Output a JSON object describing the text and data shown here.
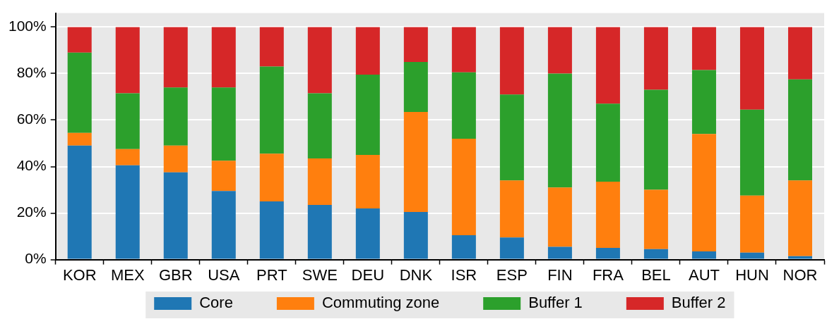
{
  "chart_data": {
    "type": "bar",
    "stacked": true,
    "categories": [
      "KOR",
      "MEX",
      "GBR",
      "USA",
      "PRT",
      "SWE",
      "DEU",
      "DNK",
      "ISR",
      "ESP",
      "FIN",
      "FRA",
      "BEL",
      "AUT",
      "HUN",
      "NOR"
    ],
    "series": [
      {
        "name": "Core",
        "color": "#1f77b4",
        "values": [
          49,
          40.5,
          37.5,
          29.5,
          25,
          23.5,
          22,
          20.5,
          10.5,
          9.5,
          5.5,
          5,
          4.5,
          3.5,
          3,
          1.5
        ]
      },
      {
        "name": "Commuting zone",
        "color": "#ff7f0e",
        "values": [
          5.5,
          7,
          11.5,
          13,
          20.5,
          20,
          23,
          43,
          41.5,
          24.5,
          25.5,
          28.5,
          25.5,
          50.5,
          24.5,
          32.5
        ]
      },
      {
        "name": "Buffer 1",
        "color": "#2ca02c",
        "values": [
          34.5,
          24,
          25,
          31.5,
          37.5,
          28,
          34.5,
          21.5,
          28.5,
          37,
          49,
          33.5,
          43,
          27.5,
          37,
          43.5
        ]
      },
      {
        "name": "Buffer 2",
        "color": "#d62728",
        "values": [
          11,
          28.5,
          26,
          26,
          17,
          28.5,
          20.5,
          15,
          19.5,
          29,
          20,
          33,
          27,
          18.5,
          35.5,
          22.5
        ]
      }
    ],
    "ylim": [
      0,
      106
    ],
    "yticks": [
      {
        "value": 0,
        "label": "0%"
      },
      {
        "value": 20,
        "label": "20%"
      },
      {
        "value": 40,
        "label": "40%"
      },
      {
        "value": 60,
        "label": "60%"
      },
      {
        "value": 80,
        "label": "80%"
      },
      {
        "value": 100,
        "label": "100%"
      }
    ],
    "grid": "y",
    "legend": "bottom"
  }
}
